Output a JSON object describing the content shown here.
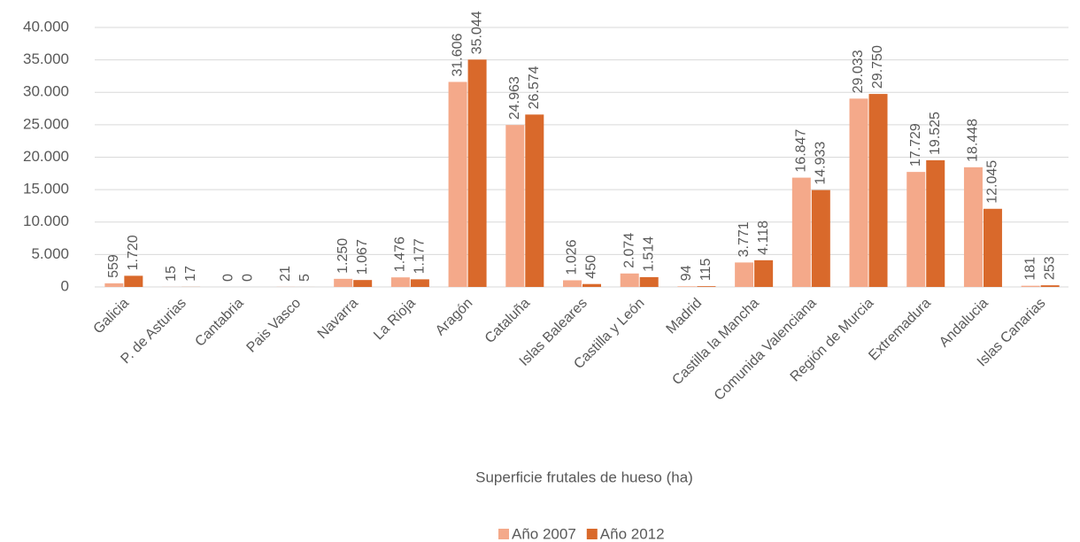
{
  "chart_data": {
    "type": "bar",
    "x_label": "Superficie frutales de hueso (ha)",
    "categories": [
      "Galicia",
      "P. de Asturias",
      "Cantabria",
      "Pais Vasco",
      "Navarra",
      "La Rioja",
      "Aragón",
      "Cataluña",
      "Islas Baleares",
      "Castilla y León",
      "Madrid",
      "Castilla la Mancha",
      "Comunida Valenciana",
      "Región de Murcia",
      "Extremadura",
      "Andalucia",
      "Islas Canarias"
    ],
    "series": [
      {
        "name": "Año 2007",
        "color": "#f4a98a",
        "values": [
          559,
          15,
          0,
          21,
          1250,
          1476,
          31606,
          24963,
          1026,
          2074,
          94,
          3771,
          16847,
          29033,
          17729,
          18448,
          181
        ],
        "value_labels": [
          "559",
          "15",
          "0",
          "21",
          "1.250",
          "1.476",
          "31.606",
          "24.963",
          "1.026",
          "2.074",
          "94",
          "3.771",
          "16.847",
          "29.033",
          "17.729",
          "18.448",
          "181"
        ]
      },
      {
        "name": "Año 2012",
        "color": "#d9692b",
        "values": [
          1720,
          17,
          0,
          5,
          1067,
          1177,
          35044,
          26574,
          450,
          1514,
          115,
          4118,
          14933,
          29750,
          19525,
          12045,
          253
        ],
        "value_labels": [
          "1.720",
          "17",
          "0",
          "5",
          "1.067",
          "1.177",
          "35.044",
          "26.574",
          "450",
          "1.514",
          "115",
          "4.118",
          "14.933",
          "29.750",
          "19.525",
          "12.045",
          "253"
        ]
      }
    ],
    "ylim": [
      0,
      40000
    ],
    "yticks": [
      0,
      {
        "value": 5000,
        "label": "5.000"
      },
      {
        "value": 10000,
        "label": "10.000"
      },
      {
        "value": 15000,
        "label": "15.000"
      },
      {
        "value": 20000,
        "label": "20.000"
      },
      {
        "value": 25000,
        "label": "25.000"
      },
      {
        "value": 30000,
        "label": "30.000"
      },
      {
        "value": 35000,
        "label": "35.000"
      },
      {
        "value": 40000,
        "label": "40.000"
      }
    ],
    "grid": true,
    "legend": "bottom"
  }
}
